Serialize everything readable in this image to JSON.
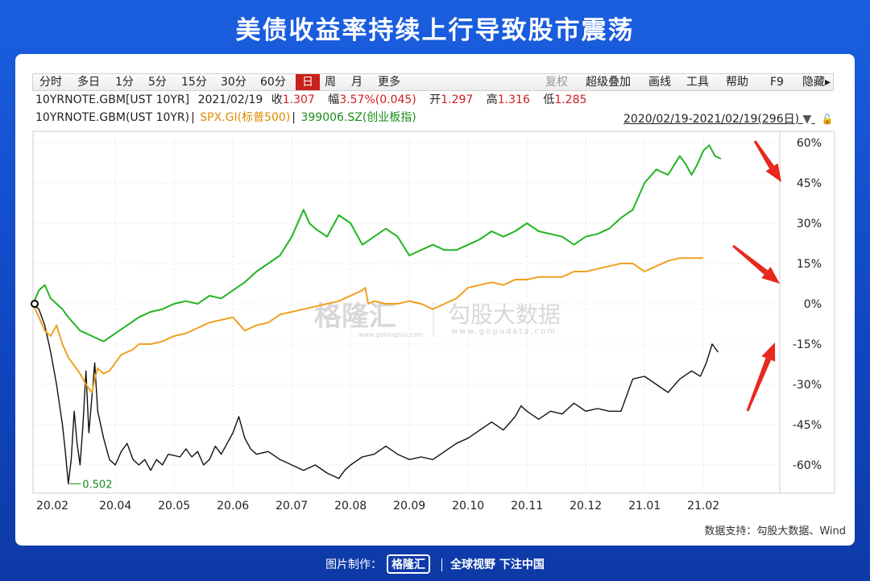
{
  "page_title": "美债收益率持续上行导致股市震荡",
  "toolbar": {
    "periods": [
      "分时",
      "多日",
      "1分",
      "5分",
      "15分",
      "30分",
      "60分",
      "日",
      "周",
      "月",
      "更多"
    ],
    "active_period": "日",
    "tools": [
      "复权",
      "超级叠加",
      "画线",
      "工具",
      "帮助",
      "F9",
      "隐藏"
    ]
  },
  "quote": {
    "symbol": "10YRNOTE.GBM[UST 10YR]",
    "date": "2021/02/19",
    "close_label": "收",
    "close": "1.307",
    "change_label": "幅",
    "change": "3.57%(0.045)",
    "open_label": "开",
    "open": "1.297",
    "high_label": "高",
    "high": "1.316",
    "low_label": "低",
    "low": "1.285"
  },
  "legend_row": {
    "series1": "10YRNOTE.GBM(UST 10YR)",
    "series2": "SPX.GI(标普500)",
    "series3": "399006.SZ(创业板指)",
    "range": "2020/02/19-2021/02/19(296日)"
  },
  "watermark": {
    "brand1": "格隆汇",
    "brand1_sub": "www.gelonghui.com",
    "brand2": "勾股大数据",
    "brand2_sub": "www.gogudata.com"
  },
  "source": "数据支持：勾股大数据、Wind",
  "footer": {
    "made_by": "图片制作：",
    "brand": "格隆汇",
    "slogan": "全球视野 下注中国"
  },
  "colors": {
    "ust": "#111111",
    "spx": "#f0a020",
    "chinext": "#22b422",
    "arrow": "#e8281e",
    "active": "#c8201a"
  },
  "chart_data": {
    "type": "line",
    "x_tick_labels": [
      "20.02",
      "20.04",
      "20.05",
      "20.06",
      "20.07",
      "20.08",
      "20.09",
      "20.10",
      "20.11",
      "20.12",
      "21.01",
      "21.02"
    ],
    "x_tick_positions": [
      0,
      1.4,
      2.4,
      3.4,
      4.4,
      5.4,
      6.4,
      7.4,
      8.4,
      9.4,
      10.4,
      11.4
    ],
    "y_ticks": [
      "60%",
      "45%",
      "30%",
      "15%",
      "0%",
      "-15%",
      "-30%",
      "-45%",
      "-60%"
    ],
    "y_tick_values": [
      60,
      45,
      30,
      15,
      0,
      -15,
      -30,
      -45,
      -60
    ],
    "ylim": [
      -68,
      63
    ],
    "xlim": [
      0,
      12.7
    ],
    "annotation": {
      "text": "0.502",
      "x": 0.62,
      "y": -67
    },
    "series": [
      {
        "name": "10YRNOTE.GBM(UST 10YR)",
        "points": [
          [
            0,
            0
          ],
          [
            0.1,
            -2
          ],
          [
            0.2,
            -8
          ],
          [
            0.3,
            -18
          ],
          [
            0.4,
            -30
          ],
          [
            0.5,
            -45
          ],
          [
            0.55,
            -55
          ],
          [
            0.6,
            -67
          ],
          [
            0.65,
            -58
          ],
          [
            0.7,
            -40
          ],
          [
            0.75,
            -52
          ],
          [
            0.8,
            -60
          ],
          [
            0.85,
            -45
          ],
          [
            0.9,
            -25
          ],
          [
            0.95,
            -48
          ],
          [
            1.0,
            -35
          ],
          [
            1.05,
            -22
          ],
          [
            1.1,
            -40
          ],
          [
            1.2,
            -50
          ],
          [
            1.3,
            -58
          ],
          [
            1.4,
            -60
          ],
          [
            1.5,
            -55
          ],
          [
            1.6,
            -52
          ],
          [
            1.7,
            -58
          ],
          [
            1.8,
            -60
          ],
          [
            1.9,
            -58
          ],
          [
            2.0,
            -62
          ],
          [
            2.1,
            -58
          ],
          [
            2.2,
            -60
          ],
          [
            2.3,
            -56
          ],
          [
            2.5,
            -57
          ],
          [
            2.6,
            -54
          ],
          [
            2.7,
            -57
          ],
          [
            2.8,
            -55
          ],
          [
            2.9,
            -60
          ],
          [
            3.0,
            -58
          ],
          [
            3.1,
            -53
          ],
          [
            3.2,
            -56
          ],
          [
            3.4,
            -48
          ],
          [
            3.5,
            -42
          ],
          [
            3.6,
            -50
          ],
          [
            3.7,
            -54
          ],
          [
            3.8,
            -56
          ],
          [
            4.0,
            -55
          ],
          [
            4.2,
            -58
          ],
          [
            4.4,
            -60
          ],
          [
            4.6,
            -62
          ],
          [
            4.8,
            -60
          ],
          [
            5.0,
            -63
          ],
          [
            5.2,
            -65
          ],
          [
            5.3,
            -62
          ],
          [
            5.4,
            -60
          ],
          [
            5.6,
            -57
          ],
          [
            5.8,
            -56
          ],
          [
            6.0,
            -53
          ],
          [
            6.2,
            -56
          ],
          [
            6.4,
            -58
          ],
          [
            6.6,
            -57
          ],
          [
            6.8,
            -58
          ],
          [
            7.0,
            -55
          ],
          [
            7.2,
            -52
          ],
          [
            7.4,
            -50
          ],
          [
            7.6,
            -47
          ],
          [
            7.8,
            -44
          ],
          [
            8.0,
            -47
          ],
          [
            8.2,
            -42
          ],
          [
            8.3,
            -38
          ],
          [
            8.4,
            -40
          ],
          [
            8.6,
            -43
          ],
          [
            8.8,
            -40
          ],
          [
            9.0,
            -41
          ],
          [
            9.2,
            -37
          ],
          [
            9.4,
            -40
          ],
          [
            9.6,
            -39
          ],
          [
            9.8,
            -40
          ],
          [
            10.0,
            -40
          ],
          [
            10.1,
            -34
          ],
          [
            10.2,
            -28
          ],
          [
            10.4,
            -27
          ],
          [
            10.6,
            -30
          ],
          [
            10.8,
            -33
          ],
          [
            11.0,
            -28
          ],
          [
            11.2,
            -25
          ],
          [
            11.35,
            -27
          ],
          [
            11.45,
            -22
          ],
          [
            11.55,
            -15
          ],
          [
            11.65,
            -18
          ]
        ]
      },
      {
        "name": "SPX.GI(标普500)",
        "points": [
          [
            0,
            0
          ],
          [
            0.1,
            -5
          ],
          [
            0.2,
            -10
          ],
          [
            0.3,
            -12
          ],
          [
            0.4,
            -8
          ],
          [
            0.5,
            -15
          ],
          [
            0.6,
            -20
          ],
          [
            0.7,
            -23
          ],
          [
            0.8,
            -26
          ],
          [
            0.9,
            -30
          ],
          [
            1.0,
            -33
          ],
          [
            1.05,
            -28
          ],
          [
            1.1,
            -24
          ],
          [
            1.2,
            -26
          ],
          [
            1.3,
            -25
          ],
          [
            1.4,
            -22
          ],
          [
            1.5,
            -19
          ],
          [
            1.6,
            -18
          ],
          [
            1.7,
            -17
          ],
          [
            1.8,
            -15
          ],
          [
            2.0,
            -15
          ],
          [
            2.2,
            -14
          ],
          [
            2.4,
            -12
          ],
          [
            2.6,
            -11
          ],
          [
            2.8,
            -9
          ],
          [
            3.0,
            -7
          ],
          [
            3.2,
            -6
          ],
          [
            3.4,
            -5
          ],
          [
            3.6,
            -10
          ],
          [
            3.8,
            -8
          ],
          [
            4.0,
            -7
          ],
          [
            4.2,
            -4
          ],
          [
            4.4,
            -3
          ],
          [
            4.6,
            -2
          ],
          [
            4.8,
            -1
          ],
          [
            5.0,
            0
          ],
          [
            5.2,
            1
          ],
          [
            5.4,
            3
          ],
          [
            5.6,
            5
          ],
          [
            5.65,
            6
          ],
          [
            5.7,
            0
          ],
          [
            5.8,
            1
          ],
          [
            6.0,
            0
          ],
          [
            6.2,
            0
          ],
          [
            6.4,
            1
          ],
          [
            6.6,
            0
          ],
          [
            6.8,
            -2
          ],
          [
            7.0,
            0
          ],
          [
            7.2,
            2
          ],
          [
            7.3,
            4
          ],
          [
            7.4,
            6
          ],
          [
            7.6,
            7
          ],
          [
            7.8,
            8
          ],
          [
            8.0,
            7
          ],
          [
            8.2,
            9
          ],
          [
            8.4,
            9
          ],
          [
            8.6,
            10
          ],
          [
            8.8,
            10
          ],
          [
            9.0,
            10
          ],
          [
            9.2,
            12
          ],
          [
            9.4,
            12
          ],
          [
            9.6,
            13
          ],
          [
            9.8,
            14
          ],
          [
            10.0,
            15
          ],
          [
            10.2,
            15
          ],
          [
            10.4,
            12
          ],
          [
            10.6,
            14
          ],
          [
            10.8,
            16
          ],
          [
            11.0,
            17
          ],
          [
            11.2,
            17
          ],
          [
            11.4,
            17
          ]
        ]
      },
      {
        "name": "399006.SZ(创业板指)",
        "points": [
          [
            0,
            0
          ],
          [
            0.1,
            5
          ],
          [
            0.2,
            7
          ],
          [
            0.3,
            2
          ],
          [
            0.4,
            0
          ],
          [
            0.5,
            -2
          ],
          [
            0.6,
            -5
          ],
          [
            0.8,
            -10
          ],
          [
            1.0,
            -12
          ],
          [
            1.2,
            -14
          ],
          [
            1.4,
            -11
          ],
          [
            1.6,
            -8
          ],
          [
            1.8,
            -5
          ],
          [
            2.0,
            -3
          ],
          [
            2.2,
            -2
          ],
          [
            2.4,
            0
          ],
          [
            2.6,
            1
          ],
          [
            2.8,
            0
          ],
          [
            3.0,
            3
          ],
          [
            3.2,
            2
          ],
          [
            3.4,
            5
          ],
          [
            3.6,
            8
          ],
          [
            3.8,
            12
          ],
          [
            4.0,
            15
          ],
          [
            4.2,
            18
          ],
          [
            4.4,
            25
          ],
          [
            4.6,
            35
          ],
          [
            4.7,
            30
          ],
          [
            4.8,
            28
          ],
          [
            5.0,
            25
          ],
          [
            5.2,
            33
          ],
          [
            5.4,
            30
          ],
          [
            5.6,
            22
          ],
          [
            5.8,
            25
          ],
          [
            6.0,
            28
          ],
          [
            6.2,
            25
          ],
          [
            6.4,
            18
          ],
          [
            6.6,
            20
          ],
          [
            6.8,
            22
          ],
          [
            7.0,
            20
          ],
          [
            7.2,
            20
          ],
          [
            7.4,
            22
          ],
          [
            7.6,
            24
          ],
          [
            7.8,
            27
          ],
          [
            8.0,
            25
          ],
          [
            8.2,
            27
          ],
          [
            8.4,
            30
          ],
          [
            8.6,
            27
          ],
          [
            8.8,
            26
          ],
          [
            9.0,
            25
          ],
          [
            9.2,
            22
          ],
          [
            9.4,
            25
          ],
          [
            9.6,
            26
          ],
          [
            9.8,
            28
          ],
          [
            10.0,
            32
          ],
          [
            10.2,
            35
          ],
          [
            10.4,
            45
          ],
          [
            10.6,
            50
          ],
          [
            10.8,
            48
          ],
          [
            11.0,
            55
          ],
          [
            11.1,
            52
          ],
          [
            11.2,
            48
          ],
          [
            11.3,
            52
          ],
          [
            11.4,
            57
          ],
          [
            11.5,
            59
          ],
          [
            11.6,
            55
          ],
          [
            11.7,
            54
          ]
        ]
      }
    ]
  }
}
